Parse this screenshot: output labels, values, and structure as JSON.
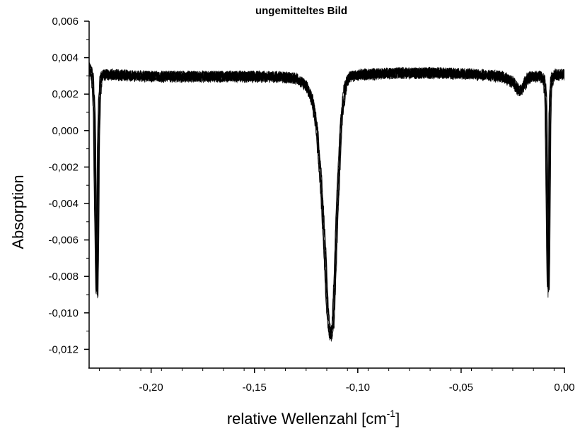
{
  "chart_data": {
    "type": "line",
    "title": "ungemitteltes Bild",
    "xlabel": "relative Wellenzahl [cm",
    "xlabel_sup": "-1",
    "xlabel_tail": "]",
    "ylabel": "Absorption",
    "xlim": [
      -0.23,
      0.0
    ],
    "ylim": [
      -0.0125,
      0.006
    ],
    "x_ticks": [
      -0.2,
      -0.15,
      -0.1,
      -0.05,
      0.0
    ],
    "x_tick_labels": [
      "-0,20",
      "-0,15",
      "-0,10",
      "-0,05",
      "0,00"
    ],
    "y_ticks": [
      0.006,
      0.004,
      0.002,
      0.0,
      -0.002,
      -0.004,
      -0.006,
      -0.008,
      -0.01,
      -0.012
    ],
    "y_tick_labels": [
      "0,006",
      "0,004",
      "0,002",
      "0,000",
      "-0,002",
      "-0,004",
      "-0,006",
      "-0,008",
      "-0,010",
      "-0,012"
    ],
    "grid": false,
    "line_color": "#000000",
    "n_traces": 6,
    "series": [
      {
        "x": [
          -0.23,
          -0.2285,
          -0.2275,
          -0.227,
          -0.2262,
          -0.2258,
          -0.2255,
          -0.225,
          -0.2245,
          -0.224,
          -0.223,
          -0.22,
          -0.2,
          -0.18,
          -0.16,
          -0.14,
          -0.13,
          -0.125,
          -0.122,
          -0.12,
          -0.118,
          -0.116,
          -0.115,
          -0.114,
          -0.113,
          -0.112,
          -0.111,
          -0.11,
          -0.108,
          -0.106,
          -0.104,
          -0.1,
          -0.08,
          -0.06,
          -0.04,
          -0.03,
          -0.025,
          -0.022,
          -0.02,
          -0.018,
          -0.015,
          -0.012,
          -0.01,
          -0.009,
          -0.0082,
          -0.0078,
          -0.0074,
          -0.007,
          -0.0065,
          -0.0055,
          -0.004,
          0.0
        ],
        "y": [
          0.0034,
          0.003,
          0.001,
          -0.004,
          -0.0093,
          -0.006,
          -0.001,
          0.0015,
          0.0025,
          0.0029,
          0.003,
          0.003,
          0.0029,
          0.0029,
          0.0029,
          0.0029,
          0.0028,
          0.0024,
          0.0016,
          0.0002,
          -0.0025,
          -0.0065,
          -0.0092,
          -0.0108,
          -0.0114,
          -0.0108,
          -0.008,
          -0.0045,
          0.0005,
          0.0024,
          0.0029,
          0.003,
          0.0031,
          0.0031,
          0.003,
          0.0029,
          0.0026,
          0.0021,
          0.0023,
          0.0028,
          0.0029,
          0.0029,
          0.0028,
          0.0018,
          -0.006,
          -0.0091,
          -0.005,
          0.001,
          0.0025,
          0.0029,
          0.003,
          0.003
        ]
      }
    ]
  }
}
